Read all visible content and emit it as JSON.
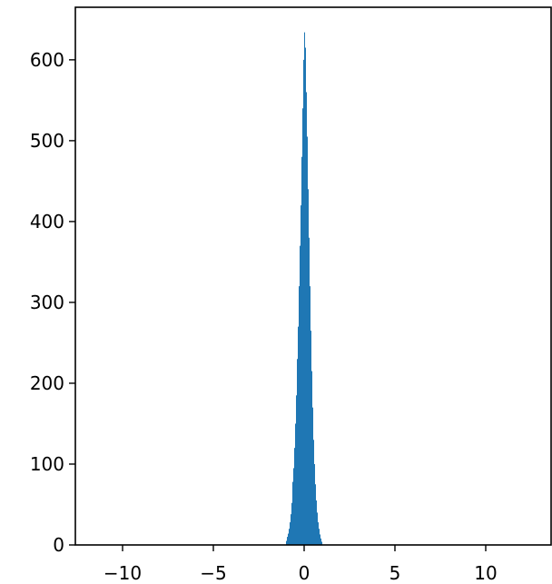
{
  "chart_data": {
    "type": "bar",
    "title": "",
    "xlabel": "",
    "ylabel": "",
    "xlim": [
      -12.6,
      13.6
    ],
    "ylim": [
      0,
      665
    ],
    "grid": false,
    "legend": "none",
    "bar_color": "#1f77b4",
    "x_ticks": [
      {
        "value": -10,
        "label": "−10"
      },
      {
        "value": -5,
        "label": "−5"
      },
      {
        "value": 0,
        "label": "0"
      },
      {
        "value": 5,
        "label": "5"
      },
      {
        "value": 10,
        "label": "10"
      }
    ],
    "y_ticks": [
      {
        "value": 0,
        "label": "0"
      },
      {
        "value": 100,
        "label": "100"
      },
      {
        "value": 200,
        "label": "200"
      },
      {
        "value": 300,
        "label": "300"
      },
      {
        "value": 400,
        "label": "400"
      },
      {
        "value": 500,
        "label": "500"
      },
      {
        "value": 600,
        "label": "600"
      }
    ],
    "bin_width": 0.05,
    "bins": [
      {
        "x": -1.0,
        "y": 5
      },
      {
        "x": -0.95,
        "y": 10
      },
      {
        "x": -0.9,
        "y": 14
      },
      {
        "x": -0.85,
        "y": 20
      },
      {
        "x": -0.8,
        "y": 28
      },
      {
        "x": -0.75,
        "y": 38
      },
      {
        "x": -0.7,
        "y": 52
      },
      {
        "x": -0.65,
        "y": 78
      },
      {
        "x": -0.6,
        "y": 95
      },
      {
        "x": -0.55,
        "y": 120
      },
      {
        "x": -0.5,
        "y": 150
      },
      {
        "x": -0.45,
        "y": 185
      },
      {
        "x": -0.4,
        "y": 230
      },
      {
        "x": -0.35,
        "y": 270
      },
      {
        "x": -0.3,
        "y": 320
      },
      {
        "x": -0.25,
        "y": 370
      },
      {
        "x": -0.2,
        "y": 420
      },
      {
        "x": -0.15,
        "y": 480
      },
      {
        "x": -0.1,
        "y": 540
      },
      {
        "x": -0.05,
        "y": 600
      },
      {
        "x": 0.0,
        "y": 634
      },
      {
        "x": 0.05,
        "y": 615
      },
      {
        "x": 0.1,
        "y": 560
      },
      {
        "x": 0.15,
        "y": 505
      },
      {
        "x": 0.2,
        "y": 440
      },
      {
        "x": 0.25,
        "y": 380
      },
      {
        "x": 0.3,
        "y": 320
      },
      {
        "x": 0.35,
        "y": 265
      },
      {
        "x": 0.4,
        "y": 215
      },
      {
        "x": 0.45,
        "y": 170
      },
      {
        "x": 0.5,
        "y": 130
      },
      {
        "x": 0.55,
        "y": 100
      },
      {
        "x": 0.6,
        "y": 75
      },
      {
        "x": 0.65,
        "y": 55
      },
      {
        "x": 0.7,
        "y": 40
      },
      {
        "x": 0.75,
        "y": 28
      },
      {
        "x": 0.8,
        "y": 20
      },
      {
        "x": 0.85,
        "y": 13
      },
      {
        "x": 0.9,
        "y": 8
      },
      {
        "x": 0.95,
        "y": 4
      }
    ]
  }
}
